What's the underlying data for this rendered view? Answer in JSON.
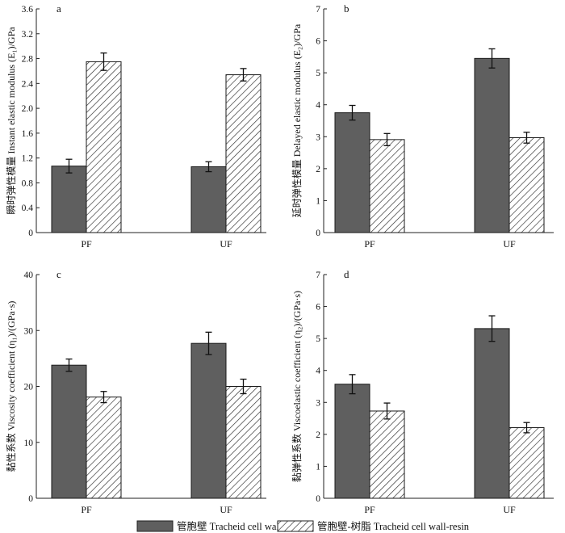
{
  "colors": {
    "solid": "#5f5f5f",
    "hatch": "#2a2a2a",
    "axis": "#222222",
    "background": "#ffffff"
  },
  "legend": {
    "items": [
      {
        "label": "管胞壁 Tracheid cell wall",
        "style": "solid"
      },
      {
        "label": "管胞壁-树脂 Tracheid cell wall-resin",
        "style": "hatch"
      }
    ]
  },
  "chart_data": [
    {
      "panel": "a",
      "type": "bar",
      "ylabel": "瞬时弹性模量 Instant elastic modulus (E₁)/GPa",
      "categories": [
        "PF",
        "UF"
      ],
      "ylim": [
        0,
        3.6
      ],
      "yticks": [
        "0",
        "0.4",
        "0.8",
        "1.2",
        "1.6",
        "2.0",
        "2.4",
        "2.8",
        "3.2",
        "3.6"
      ],
      "series": [
        {
          "name": "管胞壁 Tracheid cell wall",
          "style": "solid",
          "values": [
            1.07,
            1.06
          ],
          "errors": [
            0.11,
            0.08
          ]
        },
        {
          "name": "管胞壁-树脂 Tracheid cell wall-resin",
          "style": "hatch",
          "values": [
            2.75,
            2.54
          ],
          "errors": [
            0.14,
            0.1
          ]
        }
      ]
    },
    {
      "panel": "b",
      "type": "bar",
      "ylabel": "延时弹性模量 Delayed elastic modulus (E₂)/GPa",
      "categories": [
        "PF",
        "UF"
      ],
      "ylim": [
        0,
        7
      ],
      "yticks": [
        "0",
        "1",
        "2",
        "3",
        "4",
        "5",
        "6",
        "7"
      ],
      "series": [
        {
          "name": "管胞壁 Tracheid cell wall",
          "style": "solid",
          "values": [
            3.75,
            5.45
          ],
          "errors": [
            0.23,
            0.3
          ]
        },
        {
          "name": "管胞壁-树脂 Tracheid cell wall-resin",
          "style": "hatch",
          "values": [
            2.91,
            2.97
          ],
          "errors": [
            0.19,
            0.17
          ]
        }
      ]
    },
    {
      "panel": "c",
      "type": "bar",
      "ylabel": "黏性系数 Viscosity coefficient (η₁)/(GPa·s)",
      "categories": [
        "PF",
        "UF"
      ],
      "ylim": [
        0,
        40
      ],
      "yticks": [
        "0",
        "10",
        "20",
        "30",
        "40"
      ],
      "series": [
        {
          "name": "管胞壁 Tracheid cell wall",
          "style": "solid",
          "values": [
            23.8,
            27.7
          ],
          "errors": [
            1.1,
            2.0
          ]
        },
        {
          "name": "管胞壁-树脂 Tracheid cell wall-resin",
          "style": "hatch",
          "values": [
            18.1,
            20.0
          ],
          "errors": [
            1.0,
            1.3
          ]
        }
      ]
    },
    {
      "panel": "d",
      "type": "bar",
      "ylabel": "黏弹性系数 Viscoelastic coefficient (η₂)/(GPa·s)",
      "categories": [
        "PF",
        "UF"
      ],
      "ylim": [
        0,
        7
      ],
      "yticks": [
        "0",
        "1",
        "2",
        "3",
        "4",
        "5",
        "6",
        "7"
      ],
      "series": [
        {
          "name": "管胞壁 Tracheid cell wall",
          "style": "solid",
          "values": [
            3.57,
            5.31
          ],
          "errors": [
            0.3,
            0.4
          ]
        },
        {
          "name": "管胞壁-树脂 Tracheid cell wall-resin",
          "style": "hatch",
          "values": [
            2.73,
            2.21
          ],
          "errors": [
            0.25,
            0.16
          ]
        }
      ]
    }
  ]
}
